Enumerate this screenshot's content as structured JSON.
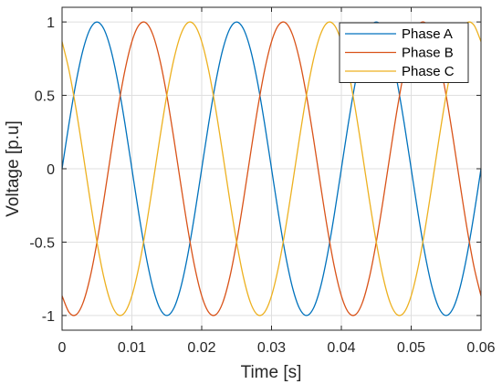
{
  "chart_data": {
    "type": "line",
    "xlabel": "Time [s]",
    "ylabel": "Voltage [p.u]",
    "xlim": [
      0,
      0.06
    ],
    "ylim": [
      -1.1,
      1.1
    ],
    "x_ticks": [
      0,
      0.01,
      0.02,
      0.03,
      0.04,
      0.05,
      0.06
    ],
    "x_tick_labels": [
      "0",
      "0.01",
      "0.02",
      "0.03",
      "0.04",
      "0.05",
      "0.06"
    ],
    "y_ticks": [
      -1,
      -0.5,
      0,
      0.5,
      1
    ],
    "y_tick_labels": [
      "-1",
      "-0.5",
      "0",
      "0.5",
      "1"
    ],
    "grid": true,
    "legend_position": "top-right",
    "x": [
      0,
      0.001,
      0.002,
      0.003,
      0.004,
      0.005,
      0.006,
      0.007,
      0.008,
      0.009,
      0.01,
      0.011,
      0.012,
      0.013,
      0.014,
      0.015,
      0.016,
      0.017,
      0.018,
      0.019,
      0.02,
      0.021,
      0.022,
      0.023,
      0.024,
      0.025,
      0.026,
      0.027,
      0.028,
      0.029,
      0.03,
      0.031,
      0.032,
      0.033,
      0.034,
      0.035,
      0.036,
      0.037,
      0.038,
      0.039,
      0.04,
      0.041,
      0.042,
      0.043,
      0.044,
      0.045,
      0.046,
      0.047,
      0.048,
      0.049,
      0.05,
      0.051,
      0.052,
      0.053,
      0.054,
      0.055,
      0.056,
      0.057,
      0.058,
      0.059,
      0.06
    ],
    "series": [
      {
        "name": "Phase A",
        "color": "#0072BD",
        "values": [
          0,
          0.309,
          0.588,
          0.809,
          0.951,
          1,
          0.951,
          0.809,
          0.588,
          0.309,
          0,
          -0.309,
          -0.588,
          -0.809,
          -0.951,
          -1,
          -0.951,
          -0.809,
          -0.588,
          -0.309,
          0,
          0.309,
          0.588,
          0.809,
          0.951,
          1,
          0.951,
          0.809,
          0.588,
          0.309,
          0,
          -0.309,
          -0.588,
          -0.809,
          -0.951,
          -1,
          -0.951,
          -0.809,
          -0.588,
          -0.309,
          0,
          0.309,
          0.588,
          0.809,
          0.951,
          1,
          0.951,
          0.809,
          0.588,
          0.309,
          0,
          -0.309,
          -0.588,
          -0.809,
          -0.951,
          -1,
          -0.951,
          -0.809,
          -0.588,
          -0.309,
          0
        ]
      },
      {
        "name": "Phase B",
        "color": "#D95319",
        "values": [
          -0.866,
          -0.978,
          -0.995,
          -0.914,
          -0.743,
          -0.5,
          -0.208,
          0.105,
          0.407,
          0.669,
          0.866,
          0.978,
          0.995,
          0.914,
          0.743,
          0.5,
          0.208,
          -0.105,
          -0.407,
          -0.669,
          -0.866,
          -0.978,
          -0.995,
          -0.914,
          -0.743,
          -0.5,
          -0.208,
          0.105,
          0.407,
          0.669,
          0.866,
          0.978,
          0.995,
          0.914,
          0.743,
          0.5,
          0.208,
          -0.105,
          -0.407,
          -0.669,
          -0.866,
          -0.978,
          -0.995,
          -0.914,
          -0.743,
          -0.5,
          -0.208,
          0.105,
          0.407,
          0.669,
          0.866,
          0.978,
          0.995,
          0.914,
          0.743,
          0.5,
          0.208,
          -0.105,
          -0.407,
          -0.669,
          -0.866
        ]
      },
      {
        "name": "Phase C",
        "color": "#EDB120",
        "values": [
          0.866,
          0.669,
          0.407,
          0.105,
          -0.208,
          -0.5,
          -0.743,
          -0.914,
          -0.995,
          -0.978,
          -0.866,
          -0.669,
          -0.407,
          -0.105,
          0.208,
          0.5,
          0.743,
          0.914,
          0.995,
          0.978,
          0.866,
          0.669,
          0.407,
          0.105,
          -0.208,
          -0.5,
          -0.743,
          -0.914,
          -0.995,
          -0.978,
          -0.866,
          -0.669,
          -0.407,
          -0.105,
          0.208,
          0.5,
          0.743,
          0.914,
          0.995,
          0.978,
          0.866,
          0.669,
          0.407,
          0.105,
          -0.208,
          -0.5,
          -0.743,
          -0.914,
          -0.995,
          -0.978,
          -0.866,
          -0.669,
          -0.407,
          -0.105,
          0.208,
          0.5,
          0.743,
          0.914,
          0.995,
          0.978,
          0.866
        ]
      }
    ]
  }
}
